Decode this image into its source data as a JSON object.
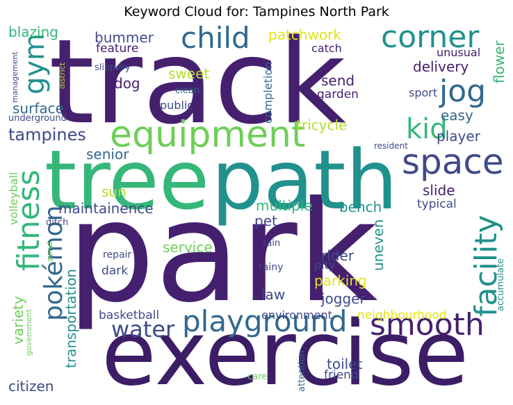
{
  "title": "Keyword Cloud for: Tampines North Park",
  "colors": {
    "dark_purple": "#45206f",
    "deep_purple": "#3c1d66",
    "indigo": "#3e4a89",
    "slate_blue": "#31688e",
    "teal": "#21918c",
    "sea_green": "#35b779",
    "light_green": "#6ece58",
    "lime": "#b5de2b",
    "yellow": "#e3e418"
  },
  "words": {
    "park": "park",
    "track": "track",
    "exercise": "exercise",
    "tree": "tree",
    "path": "path",
    "equipment": "equipment",
    "playground": "playground",
    "smooth": "smooth",
    "space": "space",
    "corner": "corner",
    "child": "child",
    "jog": "jog",
    "kid": "kid",
    "facility": "facility",
    "fitness": "fitness",
    "pokemon": "pokémon",
    "gym": "gym",
    "water": "water",
    "tampines": "tampines",
    "surface": "surface",
    "blazing": "blazing",
    "bummer": "bummer",
    "feature": "feature",
    "patchwork": "patchwork",
    "catch": "catch",
    "sweet": "sweet",
    "dog": "dog",
    "send": "send",
    "garden": "garden",
    "unusual": "unusual",
    "delivery": "delivery",
    "flower": "flower",
    "sport": "sport",
    "easy": "easy",
    "player": "player",
    "tricycle": "tricycle",
    "completion": "completion",
    "clean": "clean",
    "public": "public",
    "slippery": "slippery",
    "management": "management",
    "district": "district",
    "underground": "underground",
    "senior": "senior",
    "resident": "resident",
    "volleyball": "volleyball",
    "sun": "sun",
    "maintainence": "maintainence",
    "multiple": "multiple",
    "bench": "bench",
    "slide": "slide",
    "typical": "typical",
    "pet": "pet",
    "ditch": "ditch",
    "transportation": "transportation",
    "service": "service",
    "uneven": "uneven",
    "rider": "rider",
    "rain": "rain",
    "pond": "pond",
    "repair": "repair",
    "dark": "dark",
    "rainy": "rainy",
    "pity": "pity",
    "parking": "parking",
    "accumulate": "accumulate",
    "law": "law",
    "jogger": "jogger",
    "variety": "variety",
    "government": "government",
    "basketball": "basketball",
    "environment": "environment",
    "neighbourhood": "neighbourhood",
    "citizen": "citizen",
    "care": "care",
    "attention": "attention",
    "toilet": "toilet",
    "friend": "friend"
  }
}
